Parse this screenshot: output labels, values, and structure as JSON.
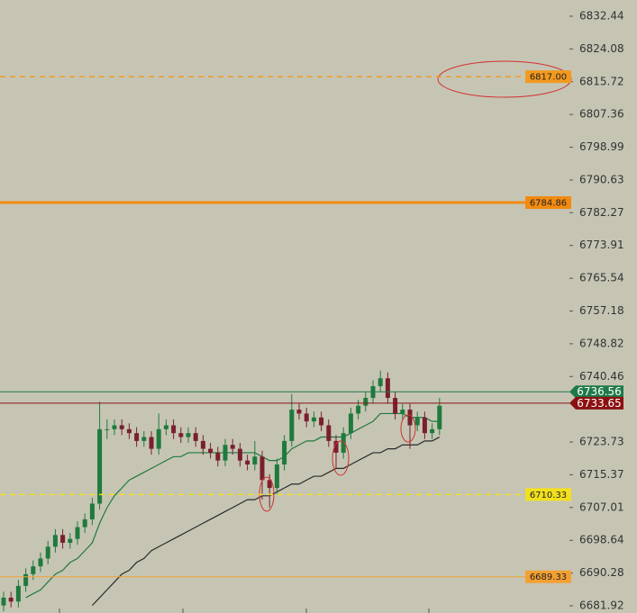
{
  "chart_data": {
    "type": "candlestick",
    "ylim": [
      6680.08,
      6836.58
    ],
    "yticks": [
      6832.44,
      6824.08,
      6815.72,
      6807.36,
      6798.99,
      6790.63,
      6782.27,
      6773.91,
      6765.54,
      6757.18,
      6748.82,
      6740.46,
      6723.73,
      6715.37,
      6707.01,
      6698.64,
      6690.28,
      6681.92
    ],
    "up_color": "#1f7a3c",
    "down_color": "#7a1f2e",
    "candles": [
      [
        6682,
        6685.5,
        6680.5,
        6684
      ],
      [
        6684,
        6685.5,
        6681.5,
        6683
      ],
      [
        6683,
        6688.5,
        6681.5,
        6687
      ],
      [
        6687,
        6691.5,
        6685.5,
        6690
      ],
      [
        6690,
        6693.5,
        6688.5,
        6692
      ],
      [
        6692,
        6695.5,
        6690.5,
        6694
      ],
      [
        6694,
        6698.5,
        6692.5,
        6697
      ],
      [
        6697,
        6701.5,
        6695.5,
        6700
      ],
      [
        6700,
        6701.5,
        6696.5,
        6698
      ],
      [
        6698,
        6700.5,
        6696.5,
        6699
      ],
      [
        6699,
        6703.5,
        6697.5,
        6702
      ],
      [
        6702,
        6705.5,
        6700.5,
        6704
      ],
      [
        6704,
        6709.5,
        6702.5,
        6708
      ],
      [
        6708,
        6734,
        6706.5,
        6727
      ],
      [
        6727,
        6729.5,
        6724.5,
        6727
      ],
      [
        6727,
        6729.5,
        6725.5,
        6728
      ],
      [
        6728,
        6729.5,
        6725.5,
        6727
      ],
      [
        6727,
        6728.5,
        6724.5,
        6726
      ],
      [
        6726,
        6727.5,
        6722.5,
        6724
      ],
      [
        6724,
        6726.5,
        6722.5,
        6725
      ],
      [
        6725,
        6726.5,
        6720.5,
        6722
      ],
      [
        6722,
        6731,
        6720.5,
        6727
      ],
      [
        6727,
        6729.5,
        6725.5,
        6728
      ],
      [
        6728,
        6729.5,
        6724.5,
        6726
      ],
      [
        6726,
        6727.5,
        6723.5,
        6725
      ],
      [
        6725,
        6727.5,
        6723.5,
        6726
      ],
      [
        6726,
        6727.5,
        6722.5,
        6724
      ],
      [
        6724,
        6725.5,
        6720.5,
        6722
      ],
      [
        6722,
        6723.5,
        6719.5,
        6721
      ],
      [
        6721,
        6722.5,
        6717.5,
        6719
      ],
      [
        6719,
        6724.5,
        6717.5,
        6723
      ],
      [
        6723,
        6724.5,
        6720.5,
        6722
      ],
      [
        6722,
        6723.5,
        6717.5,
        6719
      ],
      [
        6719,
        6720.5,
        6716.5,
        6718
      ],
      [
        6718,
        6724,
        6716.5,
        6720
      ],
      [
        6720,
        6721.5,
        6709,
        6714
      ],
      [
        6714,
        6715.5,
        6707,
        6712
      ],
      [
        6712,
        6719.5,
        6710.5,
        6718
      ],
      [
        6718,
        6725.5,
        6716.5,
        6724
      ],
      [
        6724,
        6736,
        6722.5,
        6732
      ],
      [
        6732,
        6733.5,
        6729.5,
        6731
      ],
      [
        6731,
        6732.5,
        6727.5,
        6729
      ],
      [
        6729,
        6731.5,
        6727.5,
        6730
      ],
      [
        6730,
        6731.5,
        6726.5,
        6728
      ],
      [
        6728,
        6729.5,
        6722.5,
        6724
      ],
      [
        6724,
        6725.5,
        6717,
        6721
      ],
      [
        6721,
        6727.5,
        6719.5,
        6726
      ],
      [
        6726,
        6732.5,
        6724.5,
        6731
      ],
      [
        6731,
        6734.5,
        6729.5,
        6733
      ],
      [
        6733,
        6736.5,
        6731.5,
        6735
      ],
      [
        6735,
        6739.5,
        6733.5,
        6738
      ],
      [
        6738,
        6742,
        6736.5,
        6740
      ],
      [
        6740,
        6741.5,
        6733.5,
        6735
      ],
      [
        6735,
        6736.5,
        6729.5,
        6731
      ],
      [
        6731,
        6733.5,
        6729.5,
        6732
      ],
      [
        6732,
        6733.5,
        6722,
        6728
      ],
      [
        6728,
        6731.5,
        6726.5,
        6730
      ],
      [
        6730,
        6731.5,
        6724.5,
        6726
      ],
      [
        6726,
        6728.5,
        6724.5,
        6727
      ],
      [
        6727,
        6735,
        6725.5,
        6733
      ]
    ],
    "series": [
      {
        "color": "#1f7a3c",
        "values": [
          null,
          null,
          null,
          6684,
          6685,
          6686,
          6688,
          6690,
          6691,
          6693,
          6694,
          6696,
          6698,
          6703,
          6707,
          6710,
          6712,
          6714,
          6715,
          6716,
          6717,
          6718,
          6719,
          6720,
          6720,
          6721,
          6721,
          6721,
          6721,
          6721,
          6721,
          6721,
          6721,
          6721,
          6721,
          6720,
          6719,
          6719,
          6720,
          6722,
          6723,
          6724,
          6724,
          6725,
          6725,
          6725,
          6725,
          6726,
          6727,
          6728,
          6729,
          6731,
          6731,
          6731,
          6731,
          6730,
          6730,
          6730,
          6729,
          6729
        ]
      },
      {
        "color": "#2a2a2a",
        "values": [
          null,
          null,
          null,
          null,
          null,
          null,
          null,
          null,
          null,
          null,
          null,
          null,
          6682,
          6684,
          6686,
          6688,
          6690,
          6691,
          6693,
          6694,
          6696,
          6697,
          6698,
          6699,
          6700,
          6701,
          6702,
          6703,
          6704,
          6705,
          6706,
          6707,
          6708,
          6709,
          6709,
          6710,
          6710,
          6711,
          6712,
          6713,
          6713,
          6714,
          6715,
          6715,
          6716,
          6717,
          6717,
          6718,
          6719,
          6720,
          6721,
          6721,
          6722,
          6722,
          6723,
          6723,
          6723,
          6724,
          6724,
          6725
        ]
      }
    ],
    "levels": [
      {
        "value": {
          "value": 6817,
          "label": "6817.00"
        },
        "color": "#f39a1e",
        "dash": true,
        "width": 1.5,
        "box": "plot"
      },
      {
        "value": 6784.86,
        "color": "#f28a10",
        "dash": false,
        "width": 3,
        "box": "plot"
      },
      {
        "value": 6736.56,
        "color": "#1f7a4a",
        "dash": false,
        "width": 1,
        "box": "axis"
      },
      {
        "value": 6733.65,
        "color": "#8b1010",
        "dash": false,
        "width": 1,
        "box": "axis"
      },
      {
        "value": 6710.33,
        "color": "#f2e01e",
        "dash": true,
        "width": 1.5,
        "box": "plot"
      },
      {
        "value": 6689.33,
        "color": "#f3a032",
        "dash": false,
        "width": 1,
        "box": "plot"
      }
    ]
  }
}
